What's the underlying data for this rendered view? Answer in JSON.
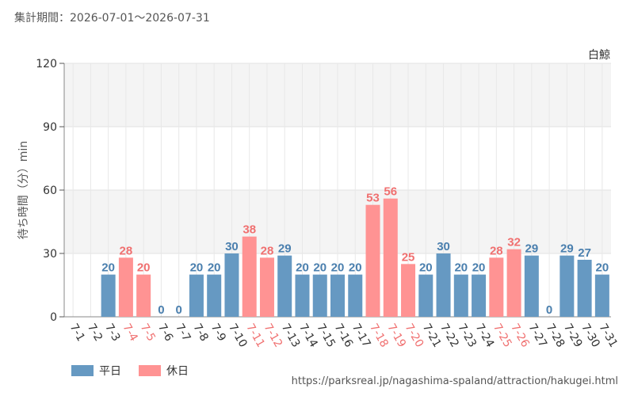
{
  "header": {
    "period": "集計期間：2026-07-01～2026-07-31"
  },
  "footer": {
    "source": "https://parksreal.jp/nagashima-spaland/attraction/hakugei.html"
  },
  "legend": {
    "weekday": "平日",
    "holiday": "休日"
  },
  "colors": {
    "weekday": "#6699c2",
    "holiday": "#ff9393",
    "holiday_label": "#f07070",
    "weekday_label": "#4a7fae"
  },
  "chart_data": {
    "type": "bar",
    "title": "白鯨",
    "ylabel": "待ち時間（分）min",
    "xlabel": "",
    "ylim": [
      0,
      120
    ],
    "yticks": [
      0,
      30,
      60,
      90,
      120
    ],
    "grid": true,
    "legend_position": "bottom-left",
    "categories": [
      "7-1",
      "7-2",
      "7-3",
      "7-4",
      "7-5",
      "7-6",
      "7-7",
      "7-8",
      "7-9",
      "7-10",
      "7-11",
      "7-12",
      "7-13",
      "7-14",
      "7-15",
      "7-16",
      "7-17",
      "7-18",
      "7-19",
      "7-20",
      "7-21",
      "7-22",
      "7-23",
      "7-24",
      "7-25",
      "7-26",
      "7-27",
      "7-28",
      "7-29",
      "7-30",
      "7-31"
    ],
    "values": [
      null,
      null,
      20,
      28,
      20,
      0,
      0,
      20,
      20,
      30,
      38,
      28,
      29,
      20,
      20,
      20,
      20,
      53,
      56,
      25,
      20,
      30,
      20,
      20,
      28,
      32,
      29,
      0,
      29,
      27,
      20
    ],
    "day_type": [
      "weekday",
      "weekday",
      "weekday",
      "holiday",
      "holiday",
      "weekday",
      "weekday",
      "weekday",
      "weekday",
      "weekday",
      "holiday",
      "holiday",
      "weekday",
      "weekday",
      "weekday",
      "weekday",
      "weekday",
      "holiday",
      "holiday",
      "holiday",
      "weekday",
      "weekday",
      "weekday",
      "weekday",
      "holiday",
      "holiday",
      "weekday",
      "weekday",
      "weekday",
      "weekday",
      "weekday"
    ]
  }
}
